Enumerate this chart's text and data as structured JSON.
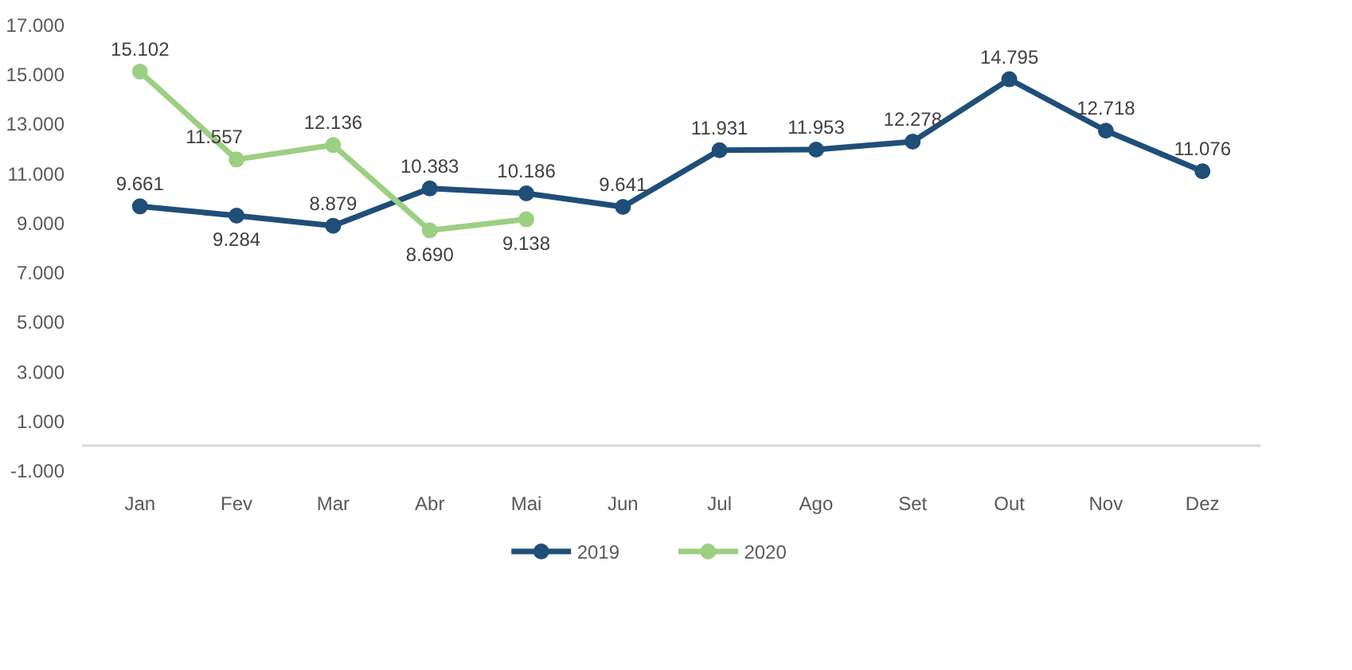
{
  "chart_data": {
    "type": "line",
    "categories": [
      "Jan",
      "Fev",
      "Mar",
      "Abr",
      "Mai",
      "Jun",
      "Jul",
      "Ago",
      "Set",
      "Out",
      "Nov",
      "Dez"
    ],
    "series": [
      {
        "name": "2019",
        "color": "#1f4e79",
        "values": [
          9661,
          9284,
          8879,
          10383,
          10186,
          9641,
          11931,
          11953,
          12278,
          14795,
          12718,
          11076
        ],
        "value_labels": [
          "9.661",
          "9.284",
          "8.879",
          "10.383",
          "10.186",
          "9.641",
          "11.931",
          "11.953",
          "12.278",
          "14.795",
          "12.718",
          "11.076"
        ]
      },
      {
        "name": "2020",
        "color": "#9dcf83",
        "values": [
          15102,
          11557,
          12136,
          8690,
          9138,
          null,
          null,
          null,
          null,
          null,
          null,
          null
        ],
        "value_labels": [
          "15.102",
          "11.557",
          "12.136",
          "8.690",
          "9.138",
          null,
          null,
          null,
          null,
          null,
          null,
          null
        ]
      }
    ],
    "ylim": [
      -1000,
      17000
    ],
    "yticks": [
      {
        "value": -1000,
        "label": "-1.000"
      },
      {
        "value": 1000,
        "label": "1.000"
      },
      {
        "value": 3000,
        "label": "3.000"
      },
      {
        "value": 5000,
        "label": "5.000"
      },
      {
        "value": 7000,
        "label": "7.000"
      },
      {
        "value": 9000,
        "label": "9.000"
      },
      {
        "value": 11000,
        "label": "11.000"
      },
      {
        "value": 13000,
        "label": "13.000"
      },
      {
        "value": 15000,
        "label": "15.000"
      },
      {
        "value": 17000,
        "label": "17.000"
      }
    ],
    "grid": false,
    "legend": "bottom",
    "marker": "circle",
    "line_style": "solid"
  }
}
